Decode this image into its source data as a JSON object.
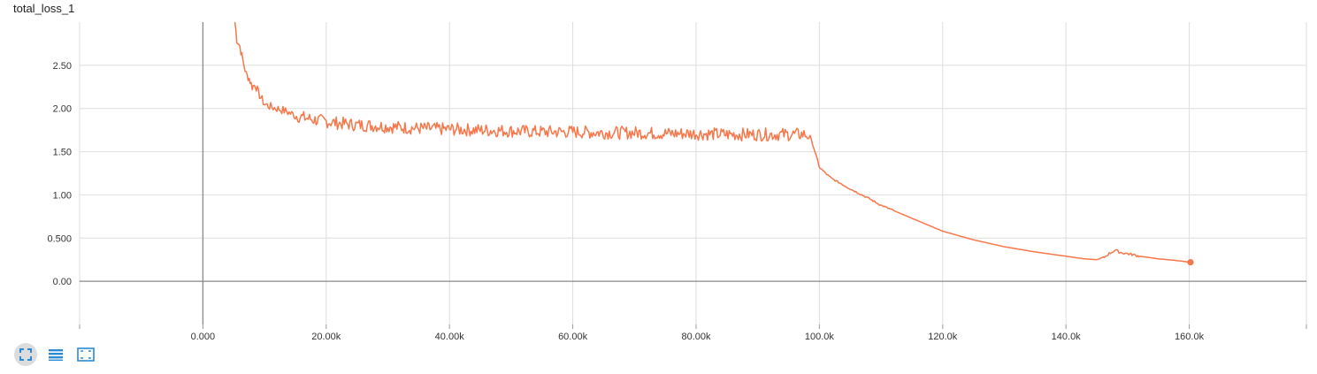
{
  "title": "total_loss_1",
  "colors": {
    "series": "#f7774a",
    "grid": "#dddddd",
    "axis": "#999999",
    "zero_line": "#888888"
  },
  "toolbar": {
    "buttons": [
      {
        "name": "fit-domain",
        "icon": "expand-corners-icon",
        "active": true
      },
      {
        "name": "toggle-log",
        "icon": "list-lines-icon",
        "active": false
      },
      {
        "name": "fit-to-data",
        "icon": "dotted-frame-icon",
        "active": false
      }
    ]
  },
  "chart_data": {
    "type": "line",
    "title": "total_loss_1",
    "xlabel": "",
    "ylabel": "",
    "xlim": [
      -20000,
      179000
    ],
    "ylim": [
      -0.5,
      3.0
    ],
    "x_ticks": [
      {
        "value": 0,
        "label": "0.000"
      },
      {
        "value": 20000,
        "label": "20.00k"
      },
      {
        "value": 40000,
        "label": "40.00k"
      },
      {
        "value": 60000,
        "label": "60.00k"
      },
      {
        "value": 80000,
        "label": "80.00k"
      },
      {
        "value": 100000,
        "label": "100.0k"
      },
      {
        "value": 120000,
        "label": "120.0k"
      },
      {
        "value": 140000,
        "label": "140.0k"
      },
      {
        "value": 160000,
        "label": "160.0k"
      }
    ],
    "y_ticks": [
      {
        "value": 0,
        "label": "0.00"
      },
      {
        "value": 0.5,
        "label": "0.500"
      },
      {
        "value": 1.0,
        "label": "1.00"
      },
      {
        "value": 1.5,
        "label": "1.50"
      },
      {
        "value": 2.0,
        "label": "2.00"
      },
      {
        "value": 2.5,
        "label": "2.50"
      }
    ],
    "grid": true,
    "series": [
      {
        "x": [
          5200,
          5500,
          6000,
          6500,
          7000,
          7500,
          8000,
          8500,
          9000,
          10000,
          11000,
          12000,
          13000,
          14000,
          15000,
          16000,
          18000,
          20000,
          22000,
          25000,
          28000,
          30000,
          35000,
          40000,
          45000,
          50000,
          55000,
          60000,
          65000,
          70000,
          75000,
          80000,
          85000,
          90000,
          95000,
          97500,
          98500,
          99500,
          100000,
          101000,
          102000,
          105000,
          108000,
          110000,
          115000,
          120000,
          125000,
          130000,
          135000,
          140000,
          143000,
          145000,
          146000,
          147000,
          148000,
          149000,
          150000,
          152000,
          155000,
          158000,
          160200
        ],
        "y": [
          3.0,
          2.8,
          2.72,
          2.55,
          2.4,
          2.35,
          2.25,
          2.28,
          2.18,
          2.05,
          2.02,
          2.0,
          1.98,
          1.95,
          1.92,
          1.9,
          1.87,
          1.85,
          1.83,
          1.81,
          1.8,
          1.79,
          1.77,
          1.76,
          1.75,
          1.74,
          1.73,
          1.73,
          1.72,
          1.72,
          1.71,
          1.71,
          1.7,
          1.7,
          1.7,
          1.7,
          1.68,
          1.45,
          1.32,
          1.25,
          1.19,
          1.07,
          0.96,
          0.88,
          0.73,
          0.58,
          0.48,
          0.4,
          0.34,
          0.29,
          0.26,
          0.25,
          0.27,
          0.32,
          0.36,
          0.33,
          0.32,
          0.29,
          0.26,
          0.24,
          0.22
        ]
      }
    ]
  }
}
